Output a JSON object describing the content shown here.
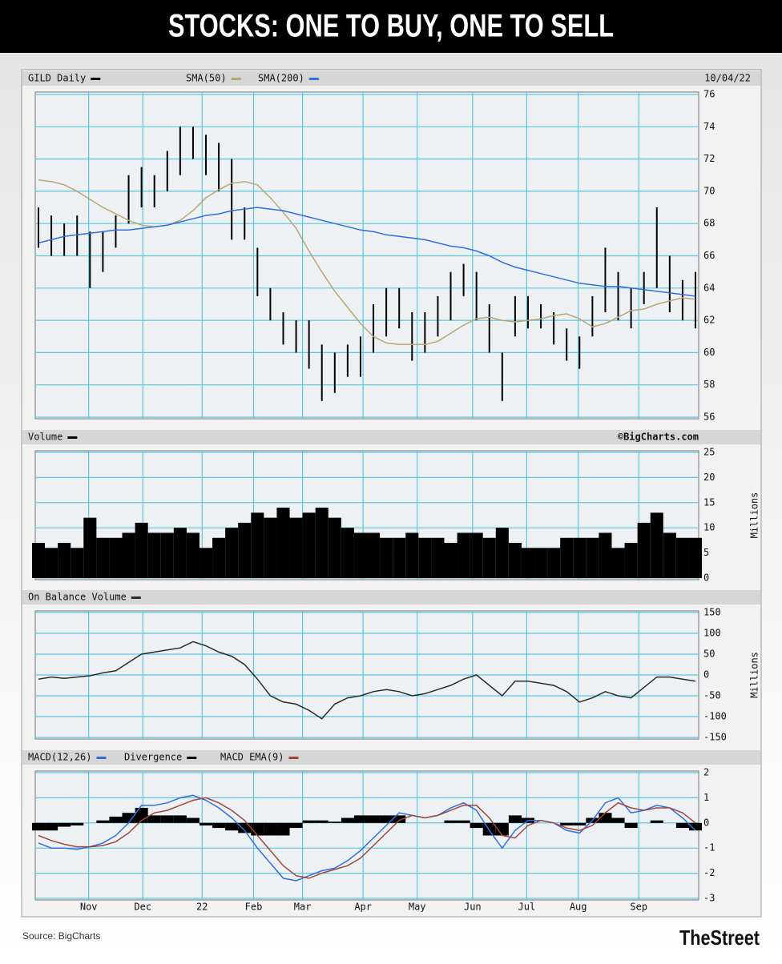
{
  "header": {
    "title": "STOCKS: ONE TO BUY, ONE TO SELL"
  },
  "footer": {
    "source": "Source: BigCharts",
    "brand": "TheStreet"
  },
  "chart_data": [
    {
      "type": "line",
      "date": "10/04/22",
      "x": [
        0,
        1,
        2,
        3,
        4,
        5,
        6,
        7,
        8,
        9,
        10,
        11,
        12,
        13,
        14,
        15,
        16,
        17,
        18,
        19,
        20,
        21,
        22,
        23,
        24,
        25,
        26,
        27,
        28,
        29,
        30,
        31,
        32,
        33,
        34,
        35,
        36,
        37,
        38,
        39,
        40,
        41,
        42,
        43,
        44,
        45,
        46,
        47,
        48,
        49,
        50,
        51
      ],
      "xlim": [
        0,
        51
      ],
      "ylim": [
        56,
        76
      ],
      "yticks": [
        56,
        58,
        60,
        62,
        64,
        66,
        68,
        70,
        72,
        74,
        76
      ],
      "grid": true,
      "series": [
        {
          "name": "GILD Daily",
          "type": "hilo",
          "color": "#000000",
          "high": [
            69,
            68.5,
            68,
            68.5,
            67.5,
            67.5,
            68.5,
            71,
            71.5,
            71,
            72.5,
            74,
            74,
            73.5,
            73,
            72,
            69,
            66.5,
            64,
            62.5,
            62,
            62,
            60.5,
            60,
            60.5,
            61,
            63,
            64,
            64,
            62.5,
            62.5,
            63.5,
            65,
            65.5,
            65,
            63,
            60,
            63.5,
            63.5,
            63,
            62.5,
            61.5,
            61,
            63.5,
            66.5,
            65,
            64,
            65,
            69,
            66,
            64.5,
            65
          ],
          "low": [
            66.5,
            66,
            66,
            66,
            64,
            65,
            66.5,
            68,
            69,
            69,
            70,
            71,
            72,
            71,
            70,
            67,
            67,
            63.5,
            62,
            60.5,
            60,
            59,
            57,
            57.5,
            58.5,
            58.5,
            60,
            61,
            61.5,
            59.5,
            60,
            61,
            62,
            63.5,
            62,
            60,
            57,
            61,
            61.5,
            61.5,
            60.5,
            59.5,
            59,
            61,
            62.5,
            62,
            61.5,
            63,
            64,
            62.5,
            62,
            61.5
          ]
        },
        {
          "name": "SMA(50)",
          "color": "#b9a671",
          "values": [
            70.7,
            70.6,
            70.4,
            70,
            69.5,
            69,
            68.6,
            68.2,
            67.9,
            67.8,
            67.9,
            68.2,
            68.8,
            69.6,
            70.1,
            70.5,
            70.6,
            70.4,
            69.6,
            68.7,
            67.7,
            66.3,
            65,
            63.8,
            62.8,
            61.8,
            61,
            60.6,
            60.5,
            60.5,
            60.5,
            60.7,
            61.2,
            61.7,
            62.1,
            62.2,
            62,
            61.9,
            62,
            62.1,
            62.3,
            62.4,
            62.1,
            61.6,
            61.8,
            62.2,
            62.6,
            62.7,
            63,
            63.2,
            63.4,
            63.3
          ]
        },
        {
          "name": "SMA(200)",
          "color": "#2f6fe0",
          "values": [
            66.8,
            67,
            67.2,
            67.3,
            67.4,
            67.5,
            67.6,
            67.6,
            67.7,
            67.8,
            67.9,
            68.1,
            68.3,
            68.5,
            68.6,
            68.8,
            68.9,
            69,
            68.9,
            68.8,
            68.6,
            68.4,
            68.2,
            68,
            67.8,
            67.6,
            67.5,
            67.3,
            67.2,
            67.1,
            67,
            66.8,
            66.6,
            66.5,
            66.3,
            66,
            65.6,
            65.3,
            65.1,
            64.9,
            64.7,
            64.5,
            64.3,
            64.2,
            64.1,
            64.1,
            64,
            63.9,
            63.8,
            63.7,
            63.6,
            63.5
          ]
        }
      ]
    },
    {
      "type": "bar",
      "credit": "©BigCharts.com",
      "ylabel": "Millions",
      "x": [
        0,
        1,
        2,
        3,
        4,
        5,
        6,
        7,
        8,
        9,
        10,
        11,
        12,
        13,
        14,
        15,
        16,
        17,
        18,
        19,
        20,
        21,
        22,
        23,
        24,
        25,
        26,
        27,
        28,
        29,
        30,
        31,
        32,
        33,
        34,
        35,
        36,
        37,
        38,
        39,
        40,
        41,
        42,
        43,
        44,
        45,
        46,
        47,
        48,
        49,
        50,
        51
      ],
      "xlim": [
        0,
        51
      ],
      "ylim": [
        0,
        25
      ],
      "yticks": [
        0,
        5,
        10,
        15,
        20,
        25
      ],
      "grid": true,
      "series": [
        {
          "name": "Volume",
          "color": "#000000",
          "values": [
            7,
            6,
            7,
            6,
            12,
            8,
            8,
            9,
            11,
            9,
            9,
            10,
            9,
            6,
            8,
            10,
            11,
            13,
            12,
            14,
            12,
            13,
            14,
            12,
            10,
            9,
            9,
            8,
            8,
            9,
            8,
            8,
            7,
            9,
            9,
            8,
            10,
            7,
            6,
            6,
            6,
            8,
            8,
            8,
            9,
            6,
            7,
            11,
            13,
            9,
            8,
            8
          ]
        }
      ]
    },
    {
      "type": "line",
      "ylabel": "Millions",
      "x": [
        0,
        1,
        2,
        3,
        4,
        5,
        6,
        7,
        8,
        9,
        10,
        11,
        12,
        13,
        14,
        15,
        16,
        17,
        18,
        19,
        20,
        21,
        22,
        23,
        24,
        25,
        26,
        27,
        28,
        29,
        30,
        31,
        32,
        33,
        34,
        35,
        36,
        37,
        38,
        39,
        40,
        41,
        42,
        43,
        44,
        45,
        46,
        47,
        48,
        49,
        50,
        51
      ],
      "xlim": [
        0,
        51
      ],
      "ylim": [
        -150,
        150
      ],
      "yticks": [
        -150,
        -100,
        -50,
        0,
        50,
        100,
        150
      ],
      "grid": true,
      "series": [
        {
          "name": "On Balance Volume",
          "color": "#2b2b2b",
          "values": [
            -10,
            -5,
            -8,
            -5,
            -2,
            5,
            10,
            30,
            50,
            55,
            60,
            65,
            80,
            70,
            55,
            45,
            25,
            -10,
            -50,
            -65,
            -70,
            -85,
            -105,
            -70,
            -55,
            -50,
            -40,
            -35,
            -40,
            -50,
            -45,
            -35,
            -25,
            -10,
            0,
            -25,
            -50,
            -15,
            -15,
            -20,
            -25,
            -40,
            -65,
            -55,
            -40,
            -50,
            -55,
            -30,
            -5,
            -5,
            -10,
            -15
          ]
        }
      ]
    },
    {
      "type": "line",
      "x": [
        0,
        1,
        2,
        3,
        4,
        5,
        6,
        7,
        8,
        9,
        10,
        11,
        12,
        13,
        14,
        15,
        16,
        17,
        18,
        19,
        20,
        21,
        22,
        23,
        24,
        25,
        26,
        27,
        28,
        29,
        30,
        31,
        32,
        33,
        34,
        35,
        36,
        37,
        38,
        39,
        40,
        41,
        42,
        43,
        44,
        45,
        46,
        47,
        48,
        49,
        50,
        51
      ],
      "xlim": [
        0,
        51
      ],
      "ylim": [
        -3,
        2
      ],
      "yticks": [
        -3,
        -2,
        -1,
        0,
        1,
        2
      ],
      "grid": true,
      "xticks": [
        {
          "value": 3.9,
          "label": "Nov"
        },
        {
          "value": 8.1,
          "label": "Dec"
        },
        {
          "value": 12.7,
          "label": "22"
        },
        {
          "value": 16.7,
          "label": "Feb"
        },
        {
          "value": 20.5,
          "label": "Mar"
        },
        {
          "value": 25.2,
          "label": "Apr"
        },
        {
          "value": 29.4,
          "label": "May"
        },
        {
          "value": 33.7,
          "label": "Jun"
        },
        {
          "value": 37.9,
          "label": "Jul"
        },
        {
          "value": 41.9,
          "label": "Aug"
        },
        {
          "value": 46.6,
          "label": "Sep"
        }
      ],
      "series": [
        {
          "name": "Divergence",
          "type": "bar",
          "color": "#000000",
          "values": [
            -0.3,
            -0.3,
            -0.15,
            -0.1,
            0,
            0.1,
            0.25,
            0.4,
            0.6,
            0.3,
            0.3,
            0.3,
            0.2,
            -0.1,
            -0.2,
            -0.3,
            -0.4,
            -0.5,
            -0.5,
            -0.5,
            -0.2,
            0.1,
            0.1,
            0.05,
            0.2,
            0.3,
            0.3,
            0.3,
            0.3,
            0,
            0,
            0,
            0.1,
            0.1,
            -0.2,
            -0.5,
            -0.5,
            0.3,
            0.2,
            0,
            0,
            -0.1,
            -0.1,
            0.2,
            0.4,
            0.2,
            -0.2,
            0,
            0.1,
            0,
            -0.2,
            -0.3
          ]
        },
        {
          "name": "MACD(12,26)",
          "color": "#2f6fe0",
          "values": [
            -0.8,
            -1,
            -1,
            -1.05,
            -0.95,
            -0.8,
            -0.5,
            0,
            0.7,
            0.7,
            0.8,
            1,
            1.1,
            0.9,
            0.6,
            0.2,
            -0.3,
            -1,
            -1.6,
            -2.2,
            -2.3,
            -2.1,
            -1.9,
            -1.8,
            -1.5,
            -1.1,
            -0.6,
            -0.1,
            0.4,
            0.3,
            0.2,
            0.3,
            0.6,
            0.8,
            0.5,
            -0.3,
            -1,
            -0.3,
            0.1,
            0.1,
            0,
            -0.3,
            -0.4,
            0.1,
            0.8,
            1,
            0.4,
            0.5,
            0.7,
            0.6,
            0.2,
            -0.3
          ]
        },
        {
          "name": "MACD EMA(9)",
          "color": "#a0463c",
          "values": [
            -0.5,
            -0.7,
            -0.85,
            -0.95,
            -0.95,
            -0.9,
            -0.75,
            -0.4,
            0.1,
            0.4,
            0.5,
            0.7,
            0.9,
            1,
            0.8,
            0.5,
            0.1,
            -0.5,
            -1.1,
            -1.7,
            -2.1,
            -2.2,
            -2,
            -1.85,
            -1.7,
            -1.4,
            -0.9,
            -0.4,
            0.1,
            0.3,
            0.2,
            0.3,
            0.5,
            0.7,
            0.7,
            0.2,
            -0.5,
            -0.6,
            -0.1,
            0.1,
            0,
            -0.2,
            -0.3,
            -0.1,
            0.4,
            0.8,
            0.6,
            0.5,
            0.6,
            0.6,
            0.4,
            0
          ]
        }
      ]
    }
  ]
}
